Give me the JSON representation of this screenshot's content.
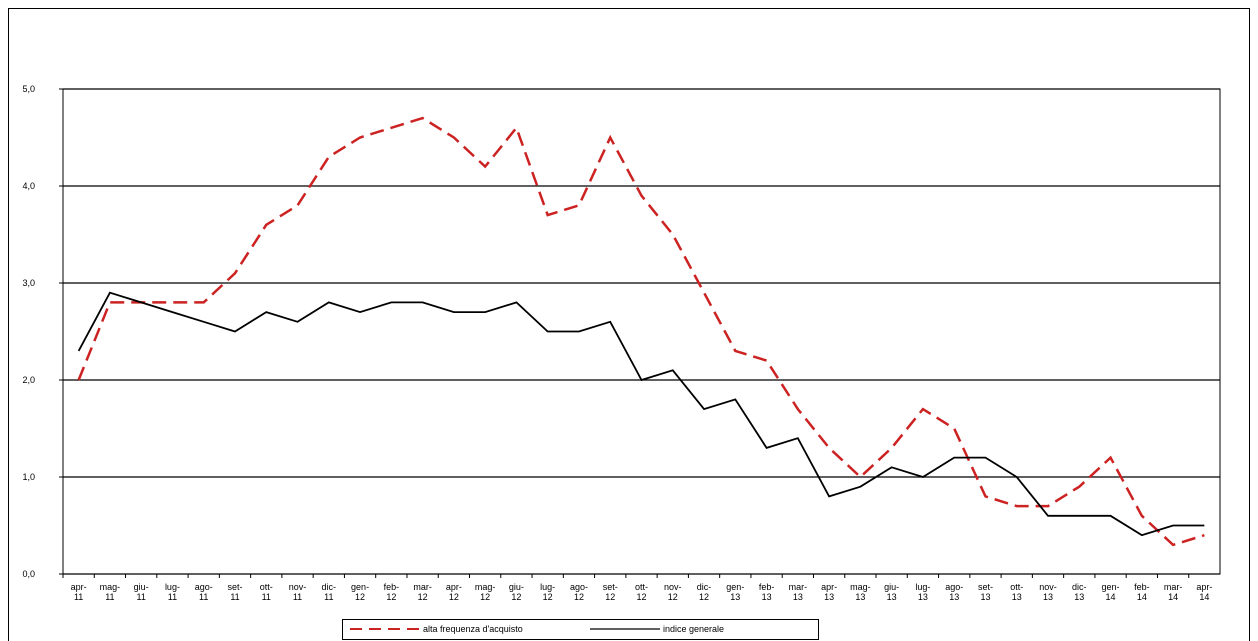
{
  "chart_data": {
    "type": "line",
    "categories": [
      "apr-11",
      "mag-11",
      "giu-11",
      "lug-11",
      "ago-11",
      "set-11",
      "ott-11",
      "nov-11",
      "dic-11",
      "gen-12",
      "feb-12",
      "mar-12",
      "apr-12",
      "mag-12",
      "giu-12",
      "lug-12",
      "ago-12",
      "set-12",
      "ott-12",
      "nov-12",
      "dic-12",
      "gen-13",
      "feb-13",
      "mar-13",
      "apr-13",
      "mag-13",
      "giu-13",
      "lug-13",
      "ago-13",
      "set-13",
      "ott-13",
      "nov-13",
      "dic-13",
      "gen-14",
      "feb-14",
      "mar-14",
      "apr-14"
    ],
    "series": [
      {
        "name": "alta frequenza d'acquisto",
        "color": "#cc2222",
        "dash": true,
        "values": [
          2.0,
          2.8,
          2.8,
          2.8,
          2.8,
          3.1,
          3.6,
          3.8,
          4.3,
          4.5,
          4.6,
          4.7,
          4.5,
          4.2,
          4.6,
          3.7,
          3.8,
          4.5,
          3.9,
          3.5,
          2.9,
          2.3,
          2.2,
          1.7,
          1.3,
          1.0,
          1.3,
          1.7,
          1.5,
          0.8,
          0.7,
          0.7,
          0.9,
          1.2,
          0.6,
          0.3,
          0.4
        ]
      },
      {
        "name": "indice generale",
        "color": "#000000",
        "dash": false,
        "values": [
          2.3,
          2.9,
          2.8,
          2.7,
          2.6,
          2.5,
          2.7,
          2.6,
          2.8,
          2.7,
          2.8,
          2.8,
          2.7,
          2.7,
          2.8,
          2.5,
          2.5,
          2.6,
          2.0,
          2.1,
          1.7,
          1.8,
          1.3,
          1.4,
          0.8,
          0.9,
          1.1,
          1.0,
          1.2,
          1.2,
          1.0,
          0.6,
          0.6,
          0.6,
          0.4,
          0.5,
          0.5
        ]
      }
    ],
    "ylim": [
      0,
      5
    ],
    "yticks": [
      {
        "value": 0,
        "label": "0,0"
      },
      {
        "value": 1,
        "label": "1,0"
      },
      {
        "value": 2,
        "label": "2,0"
      },
      {
        "value": 3,
        "label": "3,0"
      },
      {
        "value": 4,
        "label": "4,0"
      },
      {
        "value": 5,
        "label": "5,0"
      }
    ],
    "grid": true,
    "legend": "bottom"
  }
}
